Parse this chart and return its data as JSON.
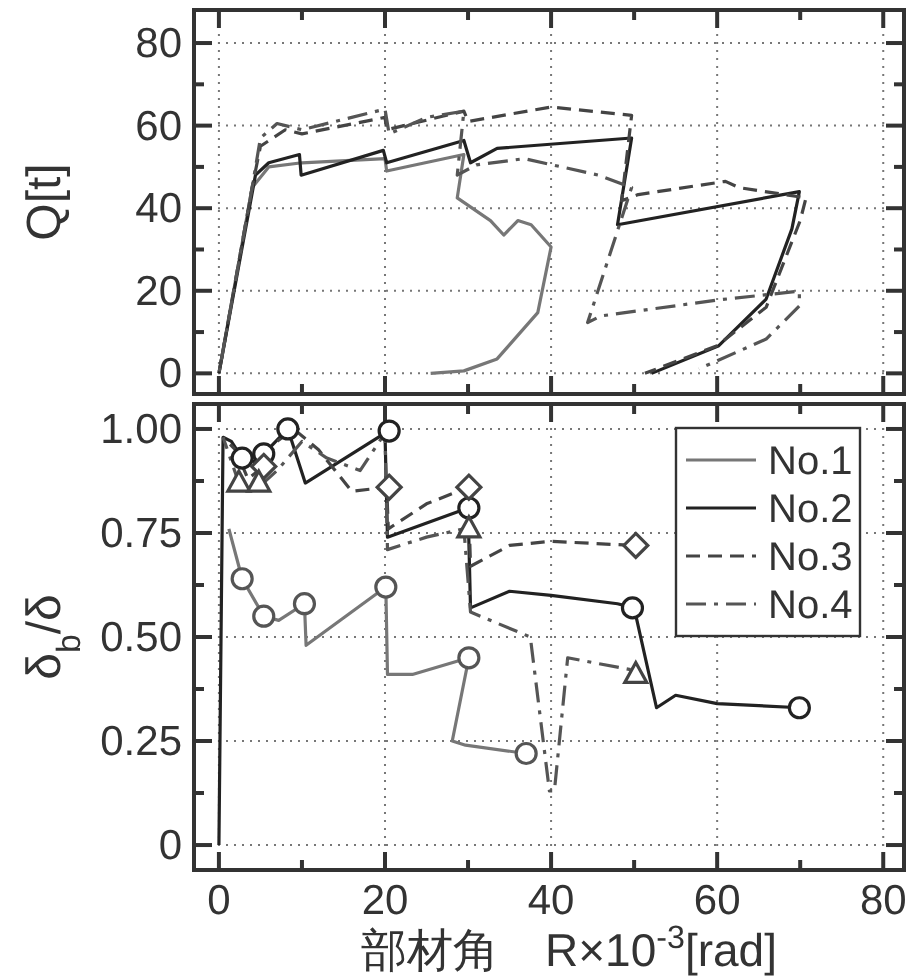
{
  "chart_data": [
    {
      "type": "line",
      "ylabel": "Q[t]",
      "xlim": [
        -3,
        82.5
      ],
      "ylim": [
        -5,
        88
      ],
      "grid": true,
      "tick_labels": "y",
      "xticks": [
        0,
        {
          "value": 10,
          "label": null
        },
        20,
        {
          "value": 30,
          "label": null
        },
        40,
        {
          "value": 50,
          "label": null
        },
        60,
        {
          "value": 70,
          "label": null
        },
        80
      ],
      "yticks": [
        0,
        {
          "value": 10,
          "label": null
        },
        20,
        {
          "value": 30,
          "label": null
        },
        40,
        {
          "value": 50,
          "label": null
        },
        60,
        {
          "value": 70,
          "label": null
        },
        80
      ],
      "series": [
        {
          "color": "#777777",
          "line_style": "solid",
          "x": [
            0,
            4,
            6,
            10,
            20,
            20.2,
            29.5,
            28.7,
            32.7,
            34.3,
            36,
            37.6,
            40,
            38.4,
            33.5,
            29.5,
            25.5
          ],
          "values": [
            0,
            45,
            50,
            51,
            52,
            49,
            53,
            42.5,
            37,
            33.5,
            37,
            36,
            30.6,
            14.7,
            3.5,
            0.6,
            0
          ]
        },
        {
          "color": "#222222",
          "line_style": "solid",
          "x": [
            0,
            4.4,
            6,
            9.7,
            9.9,
            19.8,
            20.2,
            29.5,
            30.3,
            33.5,
            49.7,
            48,
            69.9,
            69,
            65.9,
            60.2,
            52.1
          ],
          "values": [
            0,
            48,
            51,
            53,
            48,
            54,
            51,
            56.4,
            51,
            54.5,
            57,
            36,
            44,
            35,
            18,
            6.7,
            0
          ]
        },
        {
          "color": "#444444",
          "line_style": "dashed",
          "x": [
            0,
            4,
            5,
            8,
            10,
            20,
            20.2,
            29.5,
            30,
            40,
            49.7,
            48.5,
            50.5,
            61,
            62.6,
            70.7,
            70,
            65.9,
            60,
            51.3
          ],
          "values": [
            0,
            45,
            55,
            59,
            58,
            62,
            59,
            63.5,
            61,
            64.5,
            62.5,
            41.8,
            43.3,
            46.5,
            45,
            42.5,
            37,
            16,
            6.7,
            0
          ]
        },
        {
          "color": "#555555",
          "line_style": "dashdot",
          "x": [
            0,
            4,
            5,
            7,
            10,
            20,
            20.5,
            25,
            29.5,
            28.7,
            31,
            36.8,
            45.7,
            49.7,
            44.4,
            46,
            60.2,
            69.9,
            69.9,
            65.9,
            57.8
          ],
          "values": [
            0,
            45,
            57,
            60.5,
            59,
            64,
            58,
            62,
            63.5,
            48,
            50.5,
            52,
            48,
            45,
            12.3,
            13.9,
            17.8,
            19.9,
            16.3,
            8.3,
            1.1
          ]
        }
      ]
    },
    {
      "type": "line",
      "ylabel": "δ$_{b}$/δ",
      "xlabel": "部材角　R×10$^{-3}$[rad]",
      "xlim": [
        -3,
        82.5
      ],
      "ylim": [
        -0.06,
        1.06
      ],
      "grid": true,
      "legend": "top right",
      "xticks": [
        0,
        {
          "value": 10,
          "label": null
        },
        20,
        {
          "value": 30,
          "label": null
        },
        40,
        {
          "value": 50,
          "label": null
        },
        60,
        {
          "value": 70,
          "label": null
        },
        80
      ],
      "yticks": [
        {
          "value": 0,
          "label": "0"
        },
        {
          "value": 0.125,
          "label": null
        },
        {
          "value": 0.25,
          "label": "0.25"
        },
        {
          "value": 0.375,
          "label": null
        },
        {
          "value": 0.5,
          "label": "0.50"
        },
        {
          "value": 0.625,
          "label": null
        },
        {
          "value": 0.75,
          "label": "0.75"
        },
        {
          "value": 0.875,
          "label": null
        },
        {
          "value": 1,
          "label": "1.00"
        }
      ],
      "series": [
        {
          "name": "No.1",
          "color": "#777777",
          "line_style": "solid",
          "x": [
            1.2,
            2.4,
            2.8,
            5.4,
            7.2,
            10.3,
            10.5,
            20.1,
            20.3,
            23.3,
            30.1,
            28.1,
            29.7,
            37
          ],
          "values": [
            0.76,
            0.67,
            0.64,
            0.55,
            0.54,
            0.58,
            0.48,
            0.62,
            0.41,
            0.41,
            0.45,
            0.25,
            0.24,
            0.22
          ]
        },
        {
          "name": "No.2",
          "color": "#222222",
          "line_style": "solid",
          "x": [
            0,
            0.5,
            1.5,
            2.8,
            4.5,
            5.4,
            8.3,
            10.4,
            20,
            20.3,
            30,
            30.3,
            35,
            40,
            48,
            50,
            52.7,
            55,
            60,
            70
          ],
          "values": [
            0,
            0.98,
            0.97,
            0.93,
            0.92,
            0.94,
            1.0,
            0.87,
            0.99,
            0.74,
            0.81,
            0.57,
            0.61,
            0.6,
            0.58,
            0.57,
            0.33,
            0.36,
            0.34,
            0.33
          ]
        },
        {
          "name": "No.3",
          "color": "#444444",
          "line_style": "dashed",
          "x": [
            0.5,
            2,
            3.5,
            5.4,
            7,
            9,
            12,
            16,
            20.2,
            20.4,
            25,
            30,
            30.3,
            35,
            40,
            50
          ],
          "values": [
            0.98,
            0.95,
            0.88,
            0.91,
            0.97,
            1.0,
            0.95,
            0.85,
            0.86,
            0.76,
            0.82,
            0.86,
            0.67,
            0.72,
            0.73,
            0.72
          ]
        },
        {
          "name": "No.4",
          "color": "#555555",
          "line_style": "dashdot",
          "x": [
            0.5,
            2.4,
            4.8,
            7,
            10,
            13,
            17,
            20,
            20.3,
            25,
            29.5,
            30.3,
            37.5,
            39.8,
            40.4,
            42,
            50
          ],
          "values": [
            0.98,
            0.87,
            0.86,
            0.9,
            0.97,
            0.93,
            0.9,
            0.99,
            0.71,
            0.74,
            0.76,
            0.56,
            0.5,
            0.13,
            0.13,
            0.45,
            0.42
          ]
        },
        {
          "type": "scatter",
          "marker": "circle",
          "color": "#555555",
          "x": [
            2.8,
            5.4,
            10.3,
            20.1,
            30.1,
            37
          ],
          "values": [
            0.64,
            0.55,
            0.58,
            0.62,
            0.45,
            0.22
          ]
        },
        {
          "type": "scatter",
          "marker": "circle",
          "color": "#222222",
          "x": [
            2.8,
            5.4,
            8.3,
            20.5,
            30.1,
            49.8,
            69.9
          ],
          "values": [
            0.93,
            0.94,
            1.0,
            0.995,
            0.81,
            0.57,
            0.33
          ]
        },
        {
          "type": "scatter",
          "marker": "diamond",
          "color": "#444444",
          "x": [
            5.4,
            20.5,
            30.1,
            50.2
          ],
          "values": [
            0.91,
            0.86,
            0.86,
            0.72
          ]
        },
        {
          "type": "scatter",
          "marker": "triangle",
          "color": "#444444",
          "x": [
            2.4,
            4.8,
            30.1,
            50.2
          ],
          "values": [
            0.87,
            0.87,
            0.76,
            0.41
          ]
        }
      ]
    }
  ]
}
